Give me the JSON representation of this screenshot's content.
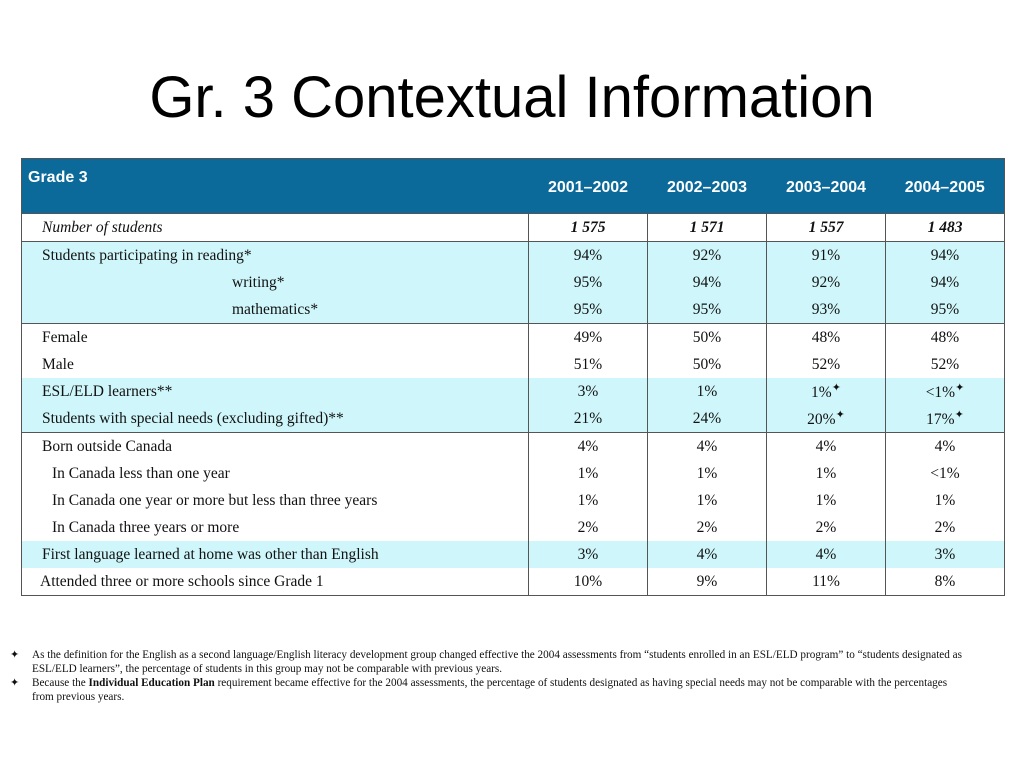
{
  "slide": {
    "title": "Gr. 3 Contextual Information"
  },
  "table": {
    "header_label": "Grade 3",
    "years": [
      "2001–2002",
      "2002–2003",
      "2003–2004",
      "2004–2005"
    ],
    "rows": [
      {
        "label": "Number of students",
        "values": [
          "1 575",
          "1 571",
          "1 557",
          "1 483"
        ]
      },
      {
        "label": "Students participating in reading*",
        "values": [
          "94%",
          "92%",
          "91%",
          "94%"
        ]
      },
      {
        "label": "writing*",
        "values": [
          "95%",
          "94%",
          "92%",
          "94%"
        ]
      },
      {
        "label": "mathematics*",
        "values": [
          "95%",
          "95%",
          "93%",
          "95%"
        ]
      },
      {
        "label": "Female",
        "values": [
          "49%",
          "50%",
          "48%",
          "48%"
        ]
      },
      {
        "label": "Male",
        "values": [
          "51%",
          "50%",
          "52%",
          "52%"
        ]
      },
      {
        "label": "ESL/ELD learners**",
        "values": [
          "3%",
          "1%",
          "1%",
          "<1%"
        ]
      },
      {
        "label": "Students with special needs (excluding gifted)**",
        "values": [
          "21%",
          "24%",
          "20%",
          "17%"
        ]
      },
      {
        "label": "Born outside Canada",
        "values": [
          "4%",
          "4%",
          "4%",
          "4%"
        ]
      },
      {
        "label": "In Canada less than one year",
        "values": [
          "1%",
          "1%",
          "1%",
          "<1%"
        ]
      },
      {
        "label": "In Canada one year or more but less than three years",
        "values": [
          "1%",
          "1%",
          "1%",
          "1%"
        ]
      },
      {
        "label": "In Canada three years or more",
        "values": [
          "2%",
          "2%",
          "2%",
          "2%"
        ]
      },
      {
        "label": "First language learned at home was other than English",
        "values": [
          "3%",
          "4%",
          "4%",
          "3%"
        ]
      },
      {
        "label": "Attended three or more schools since Grade 1",
        "values": [
          "10%",
          "9%",
          "11%",
          "8%"
        ]
      }
    ],
    "flag_symbol": "✦"
  },
  "footnotes": {
    "mark": "✦",
    "note1": "As the definition for the English as a second language/English literacy development group changed effective the 2004 assessments from “students enrolled in an ESL/ELD program” to “students designated as ESL/ELD learners”, the percentage of students in this group may not be comparable with previous years.",
    "note2_prefix": "Because the ",
    "note2_bold": "Individual Education Plan",
    "note2_suffix": " requirement became effective for the 2004 assessments, the percentage of students designated as having special needs may not be comparable with the percentages from previous years."
  },
  "colors": {
    "header_bg": "#0b6a99",
    "shaded_row": "#cff7fb"
  }
}
